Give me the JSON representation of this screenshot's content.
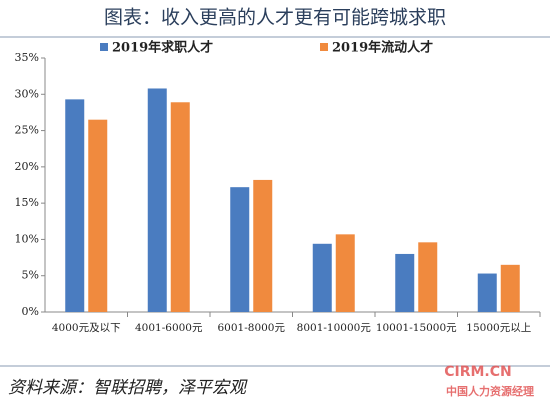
{
  "chart_data": {
    "type": "bar",
    "title": "图表：收入更高的人才更有可能跨城求职",
    "source": "资料来源：智联招聘，泽平宏观",
    "watermark": [
      "CIRM.CN",
      "中国人力资源经理"
    ],
    "categories": [
      "4000元及以下",
      "4001-6000元",
      "6001-8000元",
      "8001-10000元",
      "10001-15000元",
      "15000元以上"
    ],
    "series": [
      {
        "name": "2019年求职人才",
        "color": "#4a7cc0",
        "values": [
          29.3,
          30.8,
          17.2,
          9.4,
          8.0,
          5.3
        ]
      },
      {
        "name": "2019年流动人才",
        "color": "#f08a3e",
        "values": [
          26.5,
          28.9,
          18.2,
          10.7,
          9.6,
          6.5
        ]
      }
    ],
    "ylim": [
      0,
      35
    ],
    "yticks": [
      {
        "value": 0,
        "label": "0%"
      },
      {
        "value": 5,
        "label": "5%"
      },
      {
        "value": 10,
        "label": "10%"
      },
      {
        "value": 15,
        "label": "15%"
      },
      {
        "value": 20,
        "label": "20%"
      },
      {
        "value": 25,
        "label": "25%"
      },
      {
        "value": 30,
        "label": "30%"
      },
      {
        "value": 35,
        "label": "35%"
      }
    ],
    "grid": false
  }
}
